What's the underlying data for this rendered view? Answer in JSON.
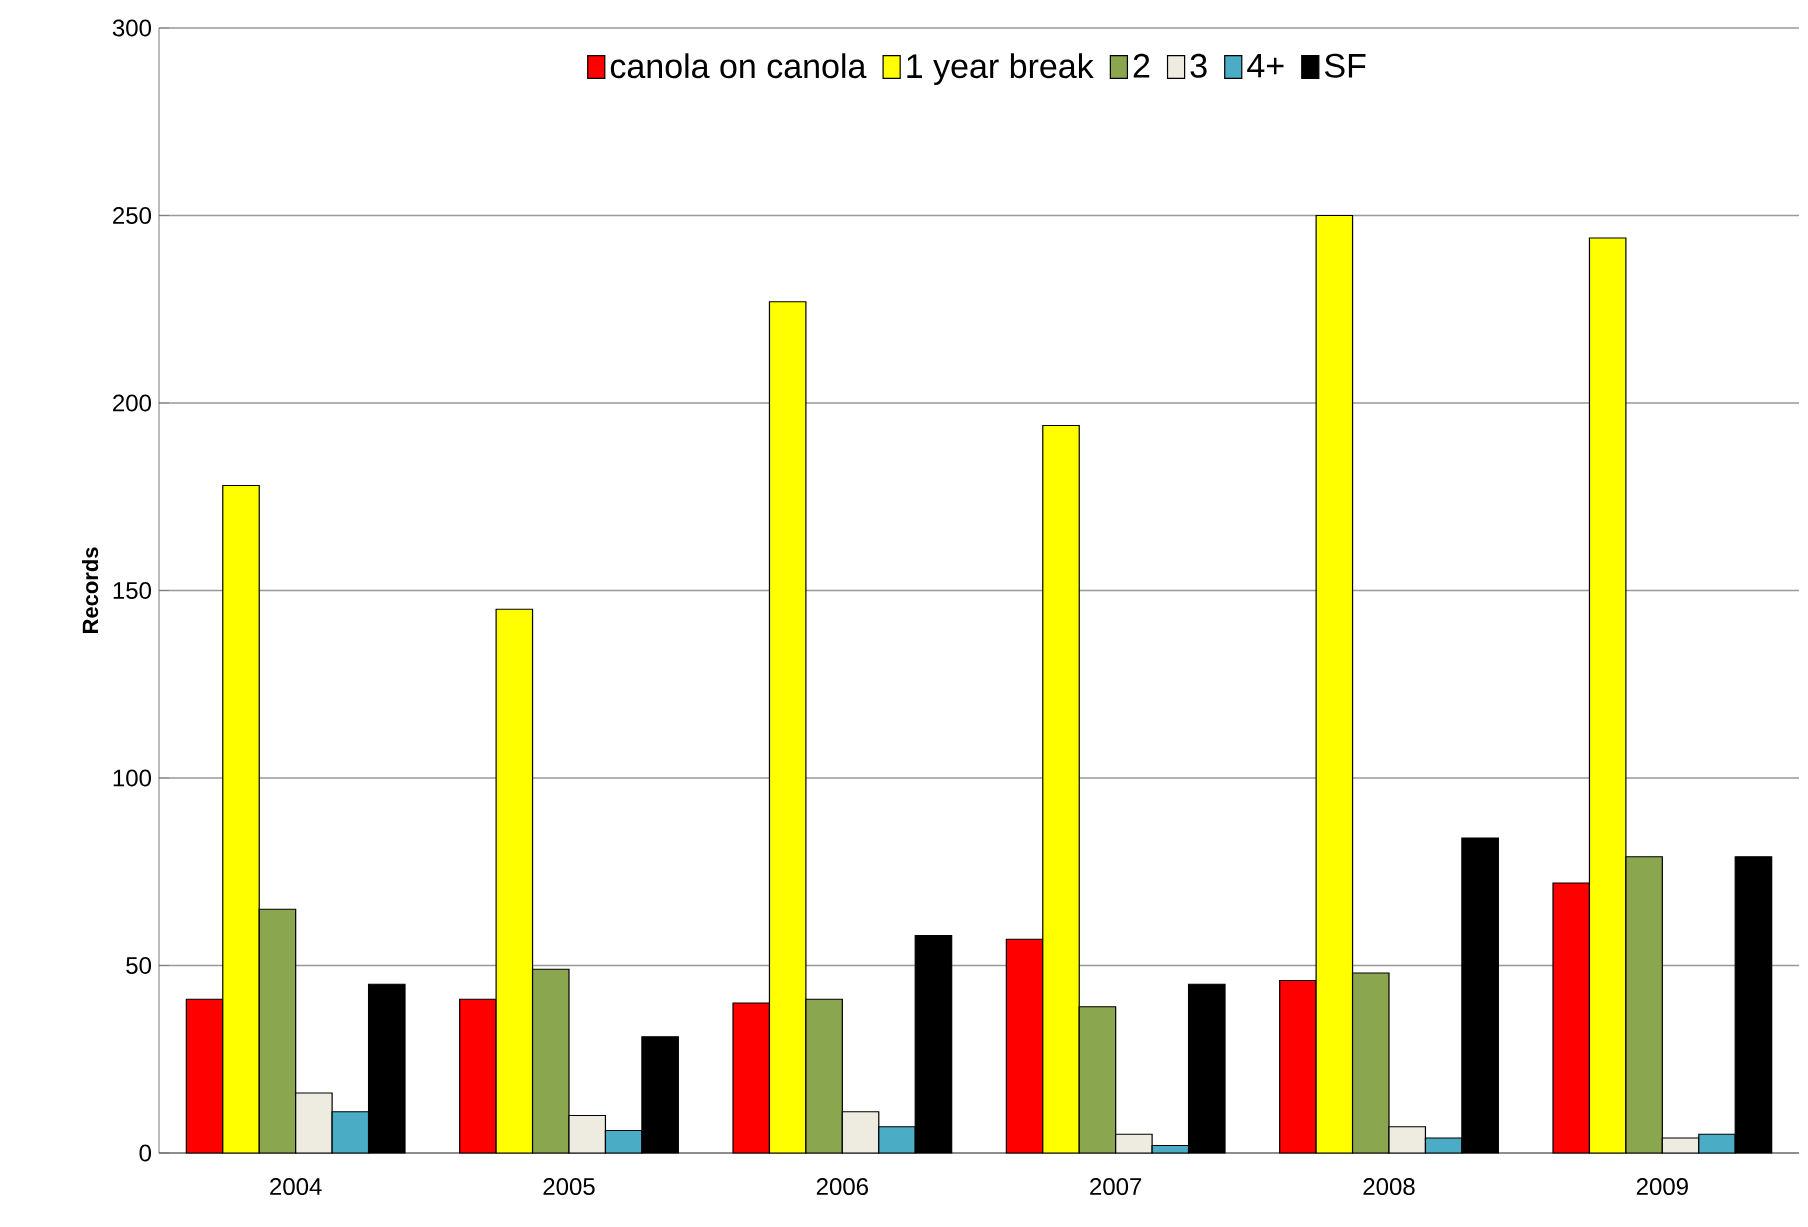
{
  "chart_data": {
    "type": "bar",
    "ylabel": "Records",
    "categories": [
      "2004",
      "2005",
      "2006",
      "2007",
      "2008",
      "2009"
    ],
    "series": [
      {
        "name": "canola on canola",
        "color": "#ff0000",
        "values": [
          41,
          41,
          40,
          57,
          46,
          72
        ]
      },
      {
        "name": "1 year break",
        "color": "#ffff00",
        "values": [
          178,
          145,
          227,
          194,
          250,
          244
        ]
      },
      {
        "name": "2",
        "color": "#8aa64e",
        "values": [
          65,
          49,
          41,
          39,
          48,
          79
        ]
      },
      {
        "name": "3",
        "color": "#eeece1",
        "values": [
          16,
          10,
          11,
          5,
          7,
          4
        ]
      },
      {
        "name": "4+",
        "color": "#4bacc6",
        "values": [
          11,
          6,
          7,
          2,
          4,
          5
        ]
      },
      {
        "name": "SF",
        "color": "#000000",
        "values": [
          45,
          31,
          58,
          45,
          84,
          79
        ]
      }
    ],
    "ylim": [
      0,
      300
    ],
    "yticks": [
      0,
      50,
      100,
      150,
      200,
      250,
      300
    ],
    "grid": "y",
    "legend": "top"
  }
}
